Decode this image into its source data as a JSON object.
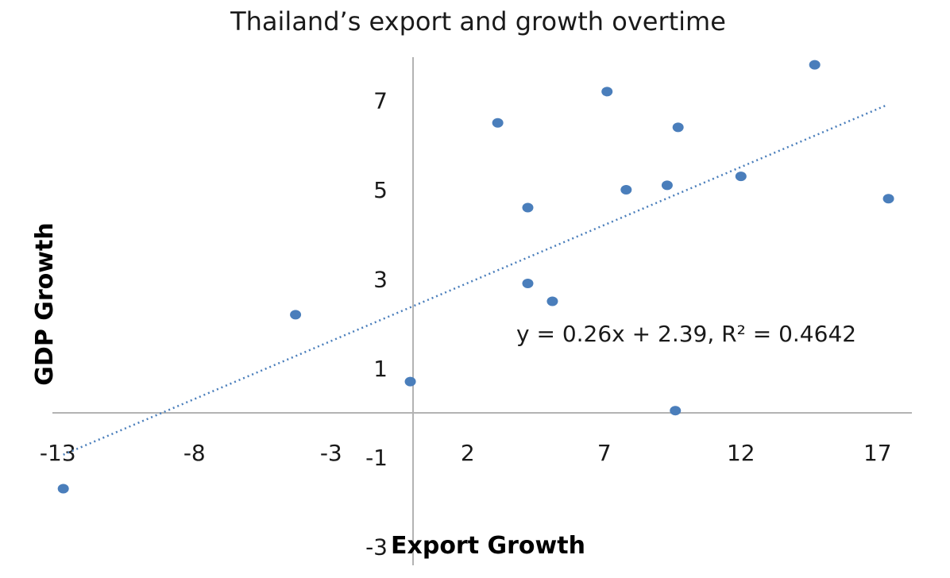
{
  "chart_data": {
    "type": "scatter",
    "title": "Thailand’s export and growth overtime",
    "xlabel": "Export Growth",
    "ylabel": "GDP Growth",
    "xlim": [
      -13,
      18
    ],
    "ylim": [
      -3,
      8
    ],
    "x_ticks": [
      -13,
      -8,
      -3,
      2,
      7,
      12,
      17
    ],
    "y_ticks": [
      -3,
      -1,
      1,
      3,
      5,
      7
    ],
    "grid": false,
    "points": [
      {
        "x": -12.8,
        "y": -1.7
      },
      {
        "x": -4.3,
        "y": 2.2
      },
      {
        "x": -0.1,
        "y": 0.7
      },
      {
        "x": 3.1,
        "y": 6.5
      },
      {
        "x": 4.2,
        "y": 4.6
      },
      {
        "x": 4.2,
        "y": 2.9
      },
      {
        "x": 5.1,
        "y": 2.5
      },
      {
        "x": 7.1,
        "y": 7.2
      },
      {
        "x": 7.8,
        "y": 5.0
      },
      {
        "x": 9.3,
        "y": 5.1
      },
      {
        "x": 9.6,
        "y": 0.05
      },
      {
        "x": 9.7,
        "y": 6.4
      },
      {
        "x": 12.0,
        "y": 5.3
      },
      {
        "x": 14.7,
        "y": 7.8
      },
      {
        "x": 17.4,
        "y": 4.8
      }
    ],
    "trendline": {
      "type": "linear",
      "slope": 0.26,
      "intercept": 2.39,
      "x_range": [
        -12.8,
        17.3
      ],
      "equation_label": "y = 0.26x + 2.39, R² = 0.4642"
    },
    "colors": {
      "points": "#4a7ebb",
      "trendline": "#4a7ebb",
      "axes": "#b3b3b3"
    }
  }
}
